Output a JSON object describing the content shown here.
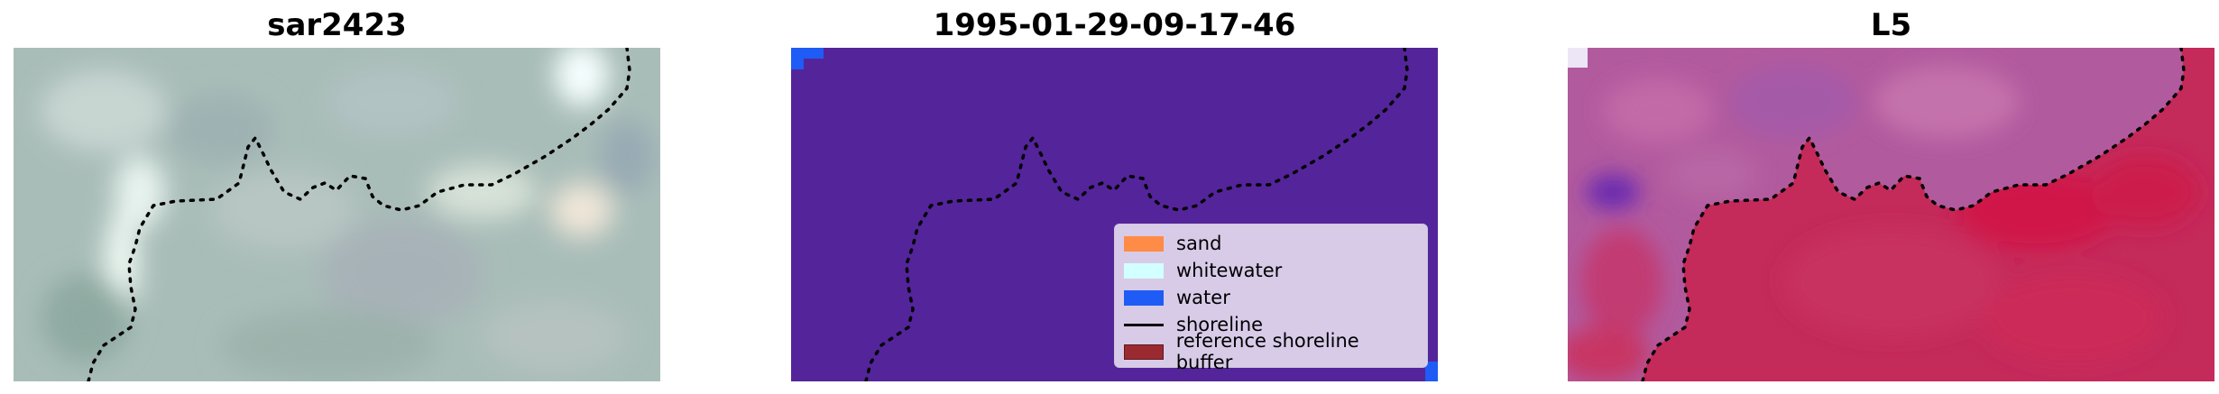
{
  "panels": [
    {
      "title": "sar2423"
    },
    {
      "title": "1995-01-29-09-17-46"
    },
    {
      "title": "L5"
    }
  ],
  "legend": {
    "items": [
      {
        "label": "sand",
        "color": "#ff8c46",
        "kind": "patch"
      },
      {
        "label": "whitewater",
        "color": "#d2ffff",
        "kind": "patch"
      },
      {
        "label": "water",
        "color": "#1e5cf5",
        "kind": "patch"
      },
      {
        "label": "shoreline",
        "color": "#000000",
        "kind": "line"
      },
      {
        "label": "reference shoreline buffer",
        "color": "#9b2a30",
        "kind": "patch"
      }
    ]
  },
  "colors": {
    "classified_background": "#54249a",
    "shoreline": "#000000",
    "rgb_base": "#a9bdb8",
    "ndwi_base": "#c44a82"
  }
}
